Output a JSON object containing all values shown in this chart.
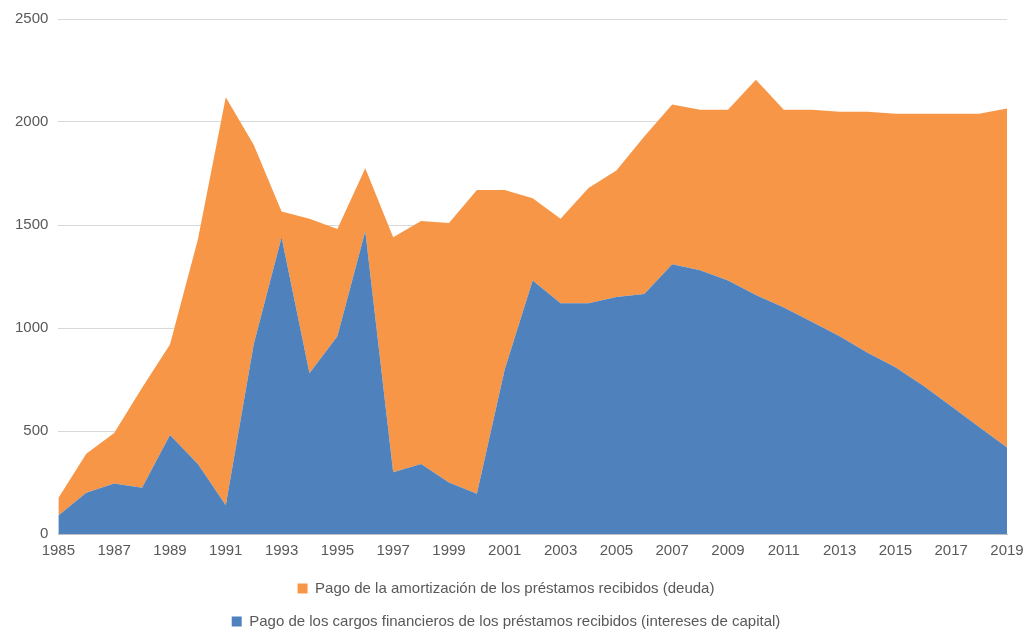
{
  "chart_data": {
    "type": "area",
    "stacked": true,
    "categories": [
      "1985",
      null,
      "1987",
      null,
      "1989",
      null,
      "1991",
      null,
      "1993",
      null,
      "1995",
      null,
      "1997",
      null,
      "1999",
      null,
      "2001",
      null,
      "2003",
      null,
      "2005",
      null,
      "2007",
      null,
      "2009",
      null,
      "2011",
      null,
      "2013",
      null,
      "2015",
      null,
      "2017",
      null,
      "2019"
    ],
    "series": [
      {
        "name": "Pago de los cargos financieros de los préstamos recibidos (intereses de capital)",
        "color": "#4f81bd",
        "values": [
          90,
          200,
          245,
          225,
          480,
          340,
          140,
          920,
          1440,
          780,
          960,
          1470,
          300,
          340,
          250,
          195,
          800,
          1230,
          1120,
          1120,
          1150,
          1165,
          1310,
          1280,
          1230,
          1160,
          1100,
          1030,
          960,
          880,
          810,
          720,
          620,
          520,
          420
        ]
      },
      {
        "name": "Pago de la amortización de los préstamos recibidos (deuda)",
        "color": "#f79646",
        "values": [
          85,
          190,
          245,
          485,
          440,
          1090,
          1980,
          970,
          125,
          750,
          520,
          305,
          1140,
          1180,
          1260,
          1475,
          870,
          400,
          410,
          560,
          615,
          765,
          775,
          780,
          830,
          1045,
          960,
          1030,
          1090,
          1170,
          1230,
          1320,
          1420,
          1520,
          1645
        ]
      }
    ],
    "ylim": [
      0,
      2500
    ],
    "yticks": [
      0,
      500,
      1000,
      1500,
      2000,
      2500
    ],
    "grid": "y",
    "legend": "bottom"
  }
}
